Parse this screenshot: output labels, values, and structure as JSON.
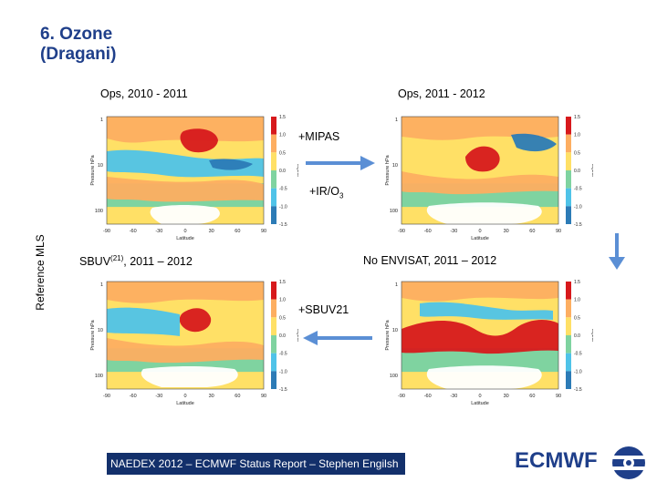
{
  "slide": {
    "title_line1": "6. Ozone",
    "title_line2": "(Dragani)",
    "col_left": "Ops,  2010 - 2011",
    "col_right": "Ops, 2011 - 2012",
    "ylabel": "Reference MLS",
    "row_left": "SBUV",
    "row_left_sup": "(21)",
    "row_left_tail": ", 2011 – 2012",
    "row_right": "No ENVISAT, 2011 – 2012",
    "exp1": "+MIPAS",
    "exp2_main": "+IR/O",
    "exp2_sub": "3",
    "exp3": "+SBUV21"
  },
  "plot": {
    "ylabel": "Pressure hPa",
    "xlabel": "Latitude",
    "cbar_unit": "mg/kg",
    "yticks": [
      "1",
      "10",
      "100"
    ],
    "xticks": [
      "-90",
      "-60",
      "-30",
      "0",
      "30",
      "60",
      "90"
    ],
    "cbar_ticks": [
      "1.5",
      "1.0",
      "0.5",
      "0.0",
      "-0.5",
      "-1.0",
      "-1.5"
    ]
  },
  "footer": {
    "text": "NAEDEX 2012 – ECMWF Status Report – Stephen Engilsh",
    "brand": "ECMWF"
  },
  "colors": {
    "title": "#1f3f8a",
    "arrow": "#5b8fd5",
    "footer_bg": "#13306b",
    "red": "#d7191c",
    "orange": "#fdae61",
    "yellow": "#ffe066",
    "green": "#7fd3a0",
    "cyan": "#4fc3e8",
    "blue": "#2c7bb6"
  }
}
